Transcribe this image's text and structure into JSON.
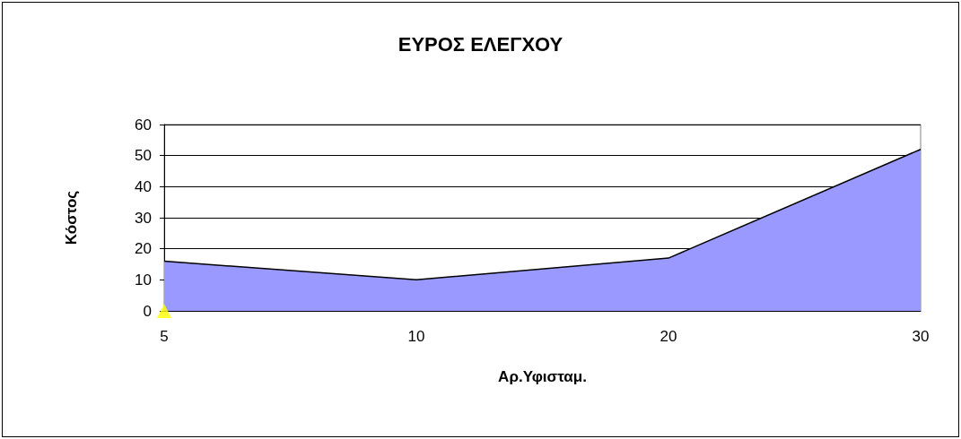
{
  "chart_data": {
    "type": "area",
    "title": "ΕΥΡΟΣ ΕΛΕΓΧΟΥ",
    "xlabel": "Αρ.Υφισταμ.",
    "ylabel": "Κόστος",
    "categories": [
      "5",
      "10",
      "20",
      "30"
    ],
    "series": [
      {
        "type": "area",
        "color": "#9999ff",
        "values": [
          16,
          10,
          17,
          52
        ]
      },
      {
        "type": "scatter",
        "color": "#ffff00",
        "marker": "triangle",
        "values": [
          0,
          null,
          null,
          null
        ]
      }
    ],
    "ylim": [
      0,
      60
    ],
    "yticks": [
      0,
      10,
      20,
      30,
      40,
      50,
      60
    ],
    "grid": "y"
  }
}
